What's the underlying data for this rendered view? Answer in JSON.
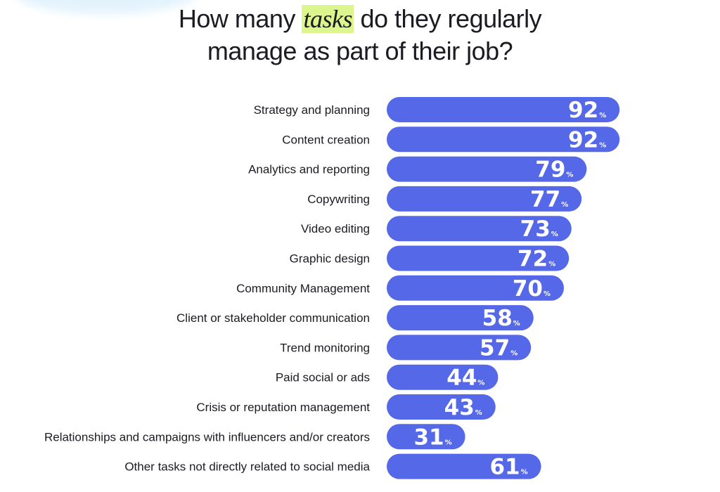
{
  "title": {
    "before": "How many",
    "highlight": "tasks",
    "after": "do they regularly",
    "line2": "manage as part of their job?"
  },
  "colors": {
    "bar": "#5468e8",
    "highlight": "#dcf58c"
  },
  "chart_data": {
    "type": "bar",
    "orientation": "horizontal",
    "unit": "%",
    "categories": [
      "Strategy and planning",
      "Content creation",
      "Analytics and reporting",
      "Copywriting",
      "Video editing",
      "Graphic design",
      "Community Management",
      "Client or stakeholder communication",
      "Trend monitoring",
      "Paid social or ads",
      "Crisis or reputation management",
      "Relationships and campaigns with influencers and/or creators",
      "Other tasks not directly related to social media"
    ],
    "values": [
      92,
      92,
      79,
      77,
      73,
      72,
      70,
      58,
      57,
      44,
      43,
      31,
      61
    ],
    "xlim": [
      0,
      100
    ],
    "grid": false,
    "legend": "none"
  }
}
